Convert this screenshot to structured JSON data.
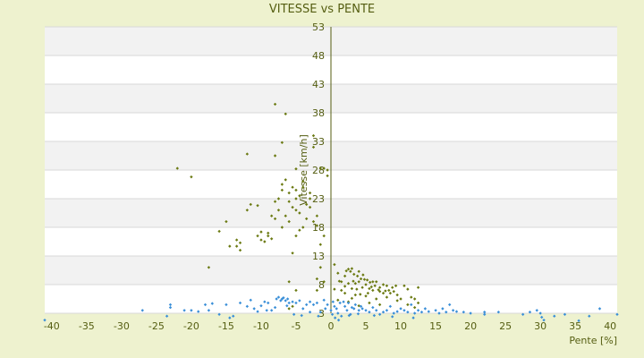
{
  "chart_data": {
    "type": "scatter",
    "title": "VITESSE vs PENTE",
    "xlabel": "Pente [%]",
    "ylabel": "Vitesse [km/h]",
    "xlim": [
      -41,
      41
    ],
    "ylim": [
      3,
      53
    ],
    "x_ticks": [
      -40,
      -35,
      -30,
      -25,
      -20,
      -15,
      -10,
      -5,
      0,
      5,
      10,
      15,
      20,
      25,
      30,
      35,
      40
    ],
    "y_ticks": [
      3,
      8,
      13,
      18,
      23,
      28,
      33,
      38,
      43,
      48,
      53
    ],
    "grid": true,
    "legend": "none",
    "colors": {
      "background": "#eef2cf",
      "band": "#f2f2f2",
      "series_a": "#6b7a12",
      "series_b": "#3a8fd8",
      "axis": "#555e12"
    },
    "series": [
      {
        "color": "#6b7a12",
        "points": [
          [
            -22,
            28.3
          ],
          [
            -20,
            26.8
          ],
          [
            -16,
            17.3
          ],
          [
            -15,
            19
          ],
          [
            -17.5,
            11
          ],
          [
            -14.5,
            14.7
          ],
          [
            -13.5,
            14.7
          ],
          [
            -13.5,
            15.8
          ],
          [
            -13,
            15.3
          ],
          [
            -13,
            14
          ],
          [
            -12,
            21
          ],
          [
            -12,
            30.8
          ],
          [
            -11.5,
            22
          ],
          [
            -10.5,
            21.8
          ],
          [
            -10.5,
            16.5
          ],
          [
            -10,
            15.8
          ],
          [
            -10,
            17.2
          ],
          [
            -9.5,
            15.5
          ],
          [
            -9,
            16.5
          ],
          [
            -9,
            17
          ],
          [
            -8.5,
            16
          ],
          [
            -8.5,
            20
          ],
          [
            -8,
            19.5
          ],
          [
            -8,
            22.5
          ],
          [
            -8,
            30.5
          ],
          [
            -8,
            39.5
          ],
          [
            -7.5,
            21
          ],
          [
            -7.5,
            23
          ],
          [
            -7,
            24.5
          ],
          [
            -7,
            25.5
          ],
          [
            -7,
            32.8
          ],
          [
            -6.5,
            26.3
          ],
          [
            -6.5,
            37.8
          ],
          [
            -6.5,
            20
          ],
          [
            -6,
            19
          ],
          [
            -6,
            22.5
          ],
          [
            -6,
            24
          ],
          [
            -5.5,
            25
          ],
          [
            -5.5,
            21.5
          ],
          [
            -5,
            21
          ],
          [
            -5,
            23
          ],
          [
            -5,
            24.5
          ],
          [
            -5,
            28.2
          ],
          [
            -5,
            16.5
          ],
          [
            -4.5,
            17.5
          ],
          [
            -4.5,
            20.5
          ],
          [
            -4.5,
            23.5
          ],
          [
            -4,
            18
          ],
          [
            -4,
            26
          ],
          [
            -4,
            25
          ],
          [
            -3.5,
            22
          ],
          [
            -3.5,
            19.5
          ],
          [
            -3,
            21.5
          ],
          [
            -3,
            23
          ],
          [
            -3,
            24
          ],
          [
            -2.5,
            19
          ],
          [
            -2.5,
            34
          ],
          [
            -2.5,
            32
          ],
          [
            -2,
            18.3
          ],
          [
            -2,
            20
          ],
          [
            -1.5,
            15
          ],
          [
            -1.5,
            28.3
          ],
          [
            -1,
            28.3
          ],
          [
            -1,
            16.5
          ],
          [
            -0.5,
            28
          ],
          [
            -0.5,
            27
          ],
          [
            -7,
            18
          ],
          [
            -5.5,
            13.5
          ],
          [
            -6,
            8.5
          ],
          [
            -5,
            7
          ],
          [
            -6,
            3.8
          ],
          [
            -5.5,
            4.2
          ],
          [
            -2,
            7
          ],
          [
            -1.5,
            11
          ],
          [
            -1,
            8.5
          ],
          [
            -2,
            9
          ],
          [
            0.5,
            11.5
          ],
          [
            1,
            10
          ],
          [
            1.5,
            8.5
          ],
          [
            1.5,
            7
          ],
          [
            2,
            9.5
          ],
          [
            2.5,
            10.7
          ],
          [
            2.8,
            10.3
          ],
          [
            3,
            10.8
          ],
          [
            3.3,
            9.8
          ],
          [
            3.5,
            8.2
          ],
          [
            4,
            10.3
          ],
          [
            4,
            8.5
          ],
          [
            4.3,
            9
          ],
          [
            4.5,
            7.5
          ],
          [
            5,
            8
          ],
          [
            5.2,
            8.8
          ],
          [
            5.5,
            7.3
          ],
          [
            6,
            8.5
          ],
          [
            6,
            7
          ],
          [
            6.3,
            7.8
          ],
          [
            6.5,
            8.5
          ],
          [
            7,
            7.5
          ],
          [
            7,
            6.8
          ],
          [
            7.5,
            8
          ],
          [
            7.5,
            6.5
          ],
          [
            8,
            7.8
          ],
          [
            8.3,
            7
          ],
          [
            8.5,
            6.5
          ],
          [
            8.8,
            7.5
          ],
          [
            9,
            6.8
          ],
          [
            9.3,
            7.8
          ],
          [
            9.5,
            6.2
          ],
          [
            10,
            5.5
          ],
          [
            10.5,
            7.8
          ],
          [
            11,
            7.2
          ],
          [
            11.5,
            5.8
          ],
          [
            12,
            5.5
          ],
          [
            12.5,
            7.5
          ],
          [
            12.5,
            4.8
          ],
          [
            2,
            7.7
          ],
          [
            2.5,
            8.2
          ],
          [
            3,
            7.3
          ],
          [
            3.2,
            8.6
          ],
          [
            3.7,
            7.2
          ],
          [
            4.2,
            6.3
          ],
          [
            4.8,
            8.9
          ],
          [
            5.3,
            6.5
          ],
          [
            5.8,
            7.6
          ],
          [
            6.8,
            7.1
          ],
          [
            7.8,
            6.9
          ],
          [
            2,
            6.5
          ],
          [
            3.5,
            6.2
          ],
          [
            5,
            6
          ],
          [
            6.5,
            5.5
          ],
          [
            8,
            5.8
          ],
          [
            9.5,
            5.2
          ],
          [
            11,
            4.5
          ],
          [
            12,
            4
          ],
          [
            2.5,
            5
          ],
          [
            4,
            4.3
          ],
          [
            5.5,
            4.8
          ],
          [
            7,
            4.5
          ],
          [
            1,
            5.3
          ],
          [
            3,
            5.6
          ],
          [
            0.5,
            7.2
          ],
          [
            1.2,
            8.6
          ],
          [
            2.2,
            10.4
          ],
          [
            3.8,
            9.5
          ],
          [
            4.6,
            9.7
          ],
          [
            5.6,
            8.4
          ]
        ]
      },
      {
        "color": "#3a8fd8",
        "points": [
          [
            -41,
            1.8
          ],
          [
            -27,
            3.5
          ],
          [
            -23.5,
            2.5
          ],
          [
            -23,
            4.5
          ],
          [
            -23,
            4
          ],
          [
            -21,
            3.5
          ],
          [
            -20,
            3.5
          ],
          [
            -19,
            3.3
          ],
          [
            -18,
            4.5
          ],
          [
            -17.5,
            3.5
          ],
          [
            -17,
            4.7
          ],
          [
            -16,
            2.8
          ],
          [
            -15,
            4.5
          ],
          [
            -14.5,
            2.2
          ],
          [
            -14,
            2.5
          ],
          [
            -13,
            4.8
          ],
          [
            -12,
            4.2
          ],
          [
            -11.5,
            5.3
          ],
          [
            -11,
            3.8
          ],
          [
            -10.5,
            3.3
          ],
          [
            -10,
            4.3
          ],
          [
            -9.5,
            5
          ],
          [
            -9,
            4.8
          ],
          [
            -8.5,
            3.5
          ],
          [
            -8,
            4
          ],
          [
            -7.8,
            5.5
          ],
          [
            -7.5,
            5.8
          ],
          [
            -7.2,
            5.2
          ],
          [
            -7,
            5.5
          ],
          [
            -6.8,
            5.7
          ],
          [
            -6.5,
            5.2
          ],
          [
            -6.2,
            5.5
          ],
          [
            -6,
            4.8
          ],
          [
            -5.5,
            5
          ],
          [
            -5.3,
            2.8
          ],
          [
            -5,
            4.8
          ],
          [
            -4.5,
            5.2
          ],
          [
            -4,
            3.8
          ],
          [
            -3.5,
            4.5
          ],
          [
            -3,
            5
          ],
          [
            -2.5,
            4.5
          ],
          [
            -2,
            4.8
          ],
          [
            -1.8,
            2.5
          ],
          [
            -1.5,
            3.2
          ],
          [
            -1,
            5.3
          ],
          [
            -0.8,
            3.8
          ],
          [
            -0.5,
            4.5
          ],
          [
            0,
            3.5
          ],
          [
            0.3,
            5
          ],
          [
            0.5,
            4.2
          ],
          [
            0.8,
            3.8
          ],
          [
            1,
            3
          ],
          [
            1.3,
            4.8
          ],
          [
            1.5,
            2.5
          ],
          [
            1.8,
            5
          ],
          [
            2,
            4.2
          ],
          [
            2.3,
            3.5
          ],
          [
            2.5,
            4.8
          ],
          [
            2.8,
            2.8
          ],
          [
            3,
            4
          ],
          [
            3.3,
            3.8
          ],
          [
            3.5,
            4.5
          ],
          [
            4,
            3.5
          ],
          [
            4.3,
            4.2
          ],
          [
            4.5,
            3.8
          ],
          [
            5,
            3.5
          ],
          [
            5.5,
            3.2
          ],
          [
            6,
            4
          ],
          [
            6.5,
            3.5
          ],
          [
            7,
            2.8
          ],
          [
            7.5,
            3.2
          ],
          [
            8,
            3.5
          ],
          [
            8.5,
            4.2
          ],
          [
            9,
            3
          ],
          [
            9.5,
            3.3
          ],
          [
            10,
            3.8
          ],
          [
            10.5,
            3.5
          ],
          [
            11,
            3.2
          ],
          [
            11.5,
            4.5
          ],
          [
            12,
            3
          ],
          [
            12.5,
            3.5
          ],
          [
            13,
            3.2
          ],
          [
            13.5,
            3.8
          ],
          [
            14,
            3.3
          ],
          [
            15,
            3.5
          ],
          [
            15.5,
            3
          ],
          [
            16,
            3.8
          ],
          [
            16.5,
            3.2
          ],
          [
            17,
            4.5
          ],
          [
            17.5,
            3.5
          ],
          [
            18,
            3.3
          ],
          [
            19,
            3.2
          ],
          [
            20,
            3
          ],
          [
            22,
            2.8
          ],
          [
            22,
            3.2
          ],
          [
            24,
            3.2
          ],
          [
            27.5,
            2.8
          ],
          [
            28.5,
            3.2
          ],
          [
            29.5,
            3.5
          ],
          [
            30,
            3
          ],
          [
            30.2,
            2.3
          ],
          [
            30.5,
            1.8
          ],
          [
            32,
            2.5
          ],
          [
            33.5,
            2.8
          ],
          [
            35.5,
            1.7
          ],
          [
            37,
            2.5
          ],
          [
            38.5,
            3.8
          ],
          [
            41,
            2.8
          ],
          [
            -3,
            3.2
          ],
          [
            0.2,
            2.8
          ],
          [
            0.6,
            2.2
          ],
          [
            1.1,
            1.8
          ],
          [
            2.6,
            2.6
          ],
          [
            3.9,
            2.9
          ],
          [
            6.2,
            2.6
          ],
          [
            8.8,
            2.4
          ],
          [
            11.8,
            2.2
          ],
          [
            -9.2,
            3.5
          ],
          [
            -6.3,
            4.3
          ],
          [
            -4.2,
            2.6
          ]
        ]
      }
    ]
  }
}
